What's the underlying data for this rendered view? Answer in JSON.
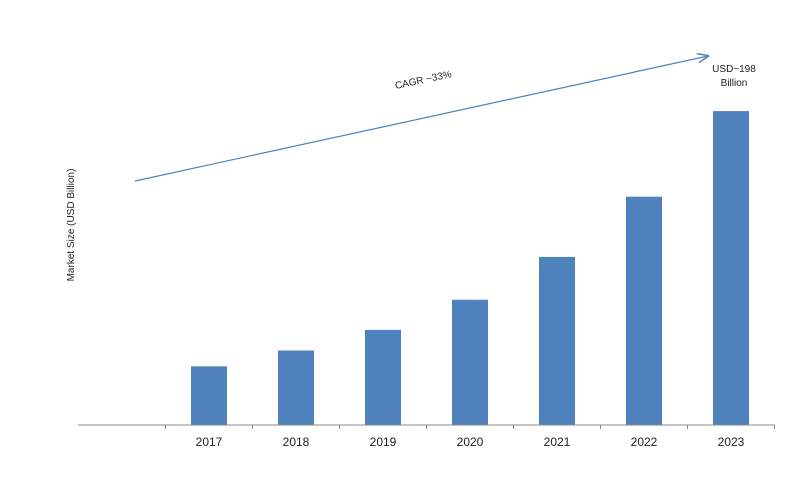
{
  "chart_data": {
    "type": "bar",
    "title": "",
    "xlabel": "",
    "ylabel": "Market Size (USD Billion)",
    "categories": [
      "2017",
      "2018",
      "2019",
      "2020",
      "2021",
      "2022",
      "2023"
    ],
    "values": [
      37,
      47,
      60,
      79,
      106,
      144,
      198
    ],
    "ylim": [
      0,
      205
    ],
    "grid": false,
    "legend": "none",
    "bar_color": "#4F81BD",
    "arrow_color": "#4F81BD",
    "annotations": {
      "cagr": "CAGR ~33%",
      "end_value_line1": "USD~198",
      "end_value_line2": "Billion"
    }
  }
}
